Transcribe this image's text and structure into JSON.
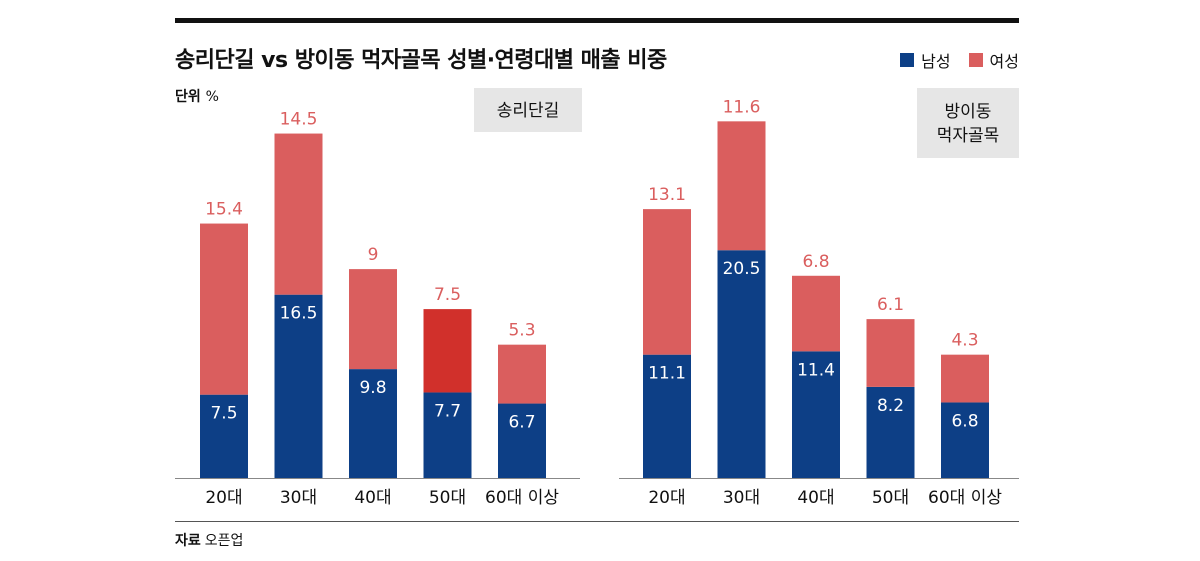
{
  "header": {
    "title": "송리단길 vs 방이동 먹자골목 성별·연령대별 매출 비중",
    "unit_label": "단위",
    "unit_value": "%"
  },
  "legend": {
    "male_label": "남성",
    "female_label": "여성"
  },
  "colors": {
    "male": "#0d3f86",
    "female": "#da5e5e",
    "female_highlight": "#d1302b",
    "male_text": "#ffffff",
    "female_text": "#da5e5e",
    "panel_bg": "#e6e6e6"
  },
  "source": {
    "label": "자료",
    "value": "오픈업"
  },
  "chart_data": [
    {
      "type": "bar",
      "stacked": true,
      "panel_label": [
        "송리단길"
      ],
      "categories": [
        "20대",
        "30대",
        "40대",
        "50대",
        "60대 이상"
      ],
      "series": [
        {
          "name": "남성",
          "values": [
            7.5,
            16.5,
            9.8,
            7.7,
            6.7
          ]
        },
        {
          "name": "여성",
          "values": [
            15.4,
            14.5,
            9,
            7.5,
            5.3
          ]
        }
      ],
      "value_labels": {
        "male": [
          "7.5",
          "16.5",
          "9.8",
          "7.7",
          "6.7"
        ],
        "female": [
          "15.4",
          "14.5",
          "9",
          "7.5",
          "5.3"
        ]
      },
      "highlight": {
        "category_index": 3,
        "series": "여성"
      },
      "ylim": [
        0,
        36
      ]
    },
    {
      "type": "bar",
      "stacked": true,
      "panel_label": [
        "방이동",
        "먹자골목"
      ],
      "categories": [
        "20대",
        "30대",
        "40대",
        "50대",
        "60대 이상"
      ],
      "series": [
        {
          "name": "남성",
          "values": [
            11.1,
            20.5,
            11.4,
            8.2,
            6.8
          ]
        },
        {
          "name": "여성",
          "values": [
            13.1,
            11.6,
            6.8,
            6.1,
            4.3
          ]
        }
      ],
      "value_labels": {
        "male": [
          "11.1",
          "20.5",
          "11.4",
          "8.2",
          "6.8"
        ],
        "female": [
          "13.1",
          "11.6",
          "6.8",
          "6.1",
          "4.3"
        ]
      },
      "ylim": [
        0,
        36
      ]
    }
  ]
}
